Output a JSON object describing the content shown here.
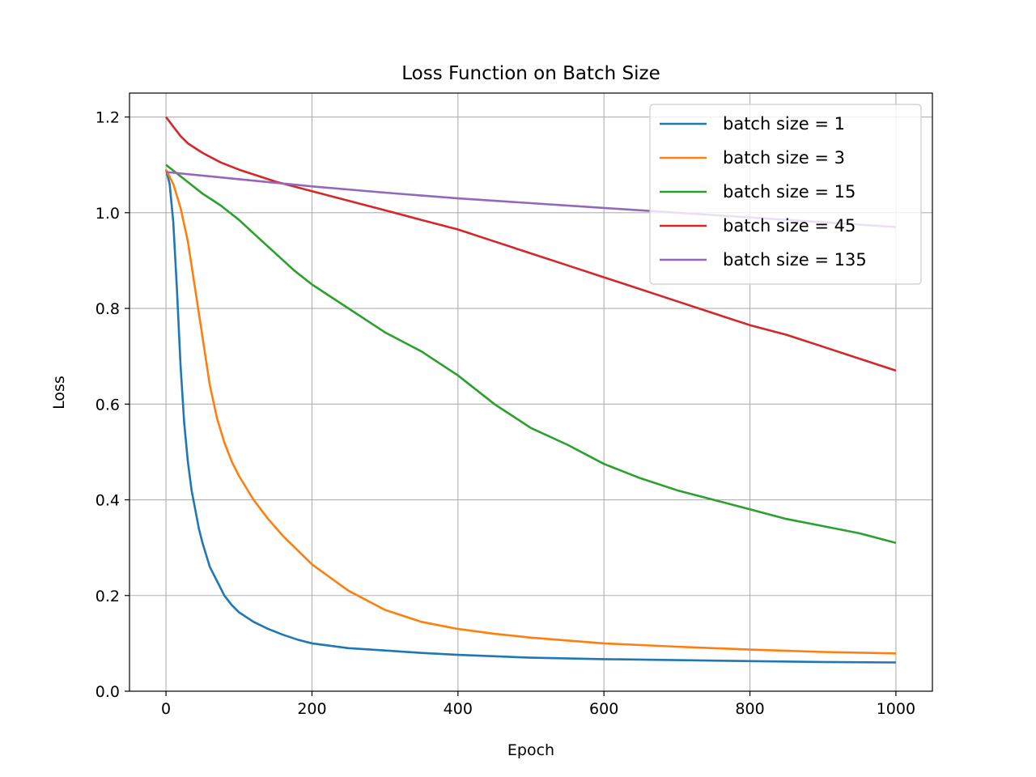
{
  "chart_data": {
    "type": "line",
    "title": "Loss Function on Batch Size",
    "xlabel": "Epoch",
    "ylabel": "Loss",
    "xlim": [
      -50,
      1050
    ],
    "ylim": [
      0,
      1.25
    ],
    "xticks": [
      0,
      200,
      400,
      600,
      800,
      1000
    ],
    "yticks": [
      0.0,
      0.2,
      0.4,
      0.6,
      0.8,
      1.0,
      1.2
    ],
    "xtick_labels": [
      "0",
      "200",
      "400",
      "600",
      "800",
      "1000"
    ],
    "ytick_labels": [
      "0.0",
      "0.2",
      "0.4",
      "0.6",
      "0.8",
      "1.0",
      "1.2"
    ],
    "grid": true,
    "legend_position": "top-right",
    "series": [
      {
        "name": "batch size = 1",
        "color": "#1f77b4",
        "x": [
          0,
          5,
          10,
          15,
          20,
          25,
          30,
          35,
          40,
          45,
          50,
          55,
          60,
          65,
          70,
          80,
          90,
          100,
          110,
          120,
          140,
          160,
          180,
          200,
          250,
          300,
          350,
          400,
          450,
          500,
          600,
          700,
          800,
          900,
          1000
        ],
        "y": [
          1.09,
          1.06,
          0.98,
          0.84,
          0.68,
          0.56,
          0.48,
          0.42,
          0.38,
          0.34,
          0.31,
          0.285,
          0.26,
          0.245,
          0.23,
          0.2,
          0.18,
          0.165,
          0.155,
          0.145,
          0.13,
          0.118,
          0.108,
          0.1,
          0.09,
          0.085,
          0.08,
          0.076,
          0.073,
          0.07,
          0.067,
          0.065,
          0.063,
          0.061,
          0.06
        ]
      },
      {
        "name": "batch size = 3",
        "color": "#ff7f0e",
        "x": [
          0,
          10,
          20,
          30,
          40,
          50,
          60,
          70,
          80,
          90,
          100,
          120,
          140,
          160,
          180,
          200,
          250,
          300,
          350,
          400,
          450,
          500,
          600,
          700,
          800,
          900,
          1000
        ],
        "y": [
          1.09,
          1.06,
          1.01,
          0.94,
          0.84,
          0.74,
          0.64,
          0.57,
          0.52,
          0.48,
          0.45,
          0.4,
          0.36,
          0.325,
          0.295,
          0.265,
          0.21,
          0.17,
          0.145,
          0.13,
          0.12,
          0.112,
          0.1,
          0.093,
          0.087,
          0.082,
          0.079
        ]
      },
      {
        "name": "batch size = 15",
        "color": "#2ca02c",
        "x": [
          0,
          25,
          50,
          75,
          100,
          125,
          150,
          175,
          200,
          250,
          300,
          350,
          400,
          450,
          500,
          550,
          600,
          650,
          700,
          750,
          800,
          850,
          900,
          950,
          1000
        ],
        "y": [
          1.1,
          1.07,
          1.04,
          1.015,
          0.985,
          0.95,
          0.915,
          0.88,
          0.85,
          0.8,
          0.75,
          0.71,
          0.66,
          0.6,
          0.55,
          0.515,
          0.475,
          0.445,
          0.42,
          0.4,
          0.38,
          0.36,
          0.345,
          0.33,
          0.31
        ]
      },
      {
        "name": "batch size = 45",
        "color": "#d62728",
        "x": [
          0,
          10,
          20,
          30,
          50,
          75,
          100,
          150,
          200,
          250,
          300,
          350,
          400,
          450,
          500,
          550,
          600,
          650,
          700,
          750,
          800,
          850,
          900,
          950,
          1000
        ],
        "y": [
          1.2,
          1.18,
          1.16,
          1.145,
          1.125,
          1.105,
          1.09,
          1.065,
          1.045,
          1.025,
          1.005,
          0.985,
          0.965,
          0.94,
          0.915,
          0.89,
          0.865,
          0.84,
          0.815,
          0.79,
          0.765,
          0.745,
          0.72,
          0.695,
          0.67
        ]
      },
      {
        "name": "batch size = 135",
        "color": "#9467bd",
        "x": [
          0,
          100,
          200,
          300,
          400,
          500,
          600,
          700,
          800,
          900,
          1000
        ],
        "y": [
          1.085,
          1.07,
          1.055,
          1.042,
          1.03,
          1.02,
          1.01,
          1.0,
          0.99,
          0.98,
          0.97
        ]
      }
    ]
  }
}
